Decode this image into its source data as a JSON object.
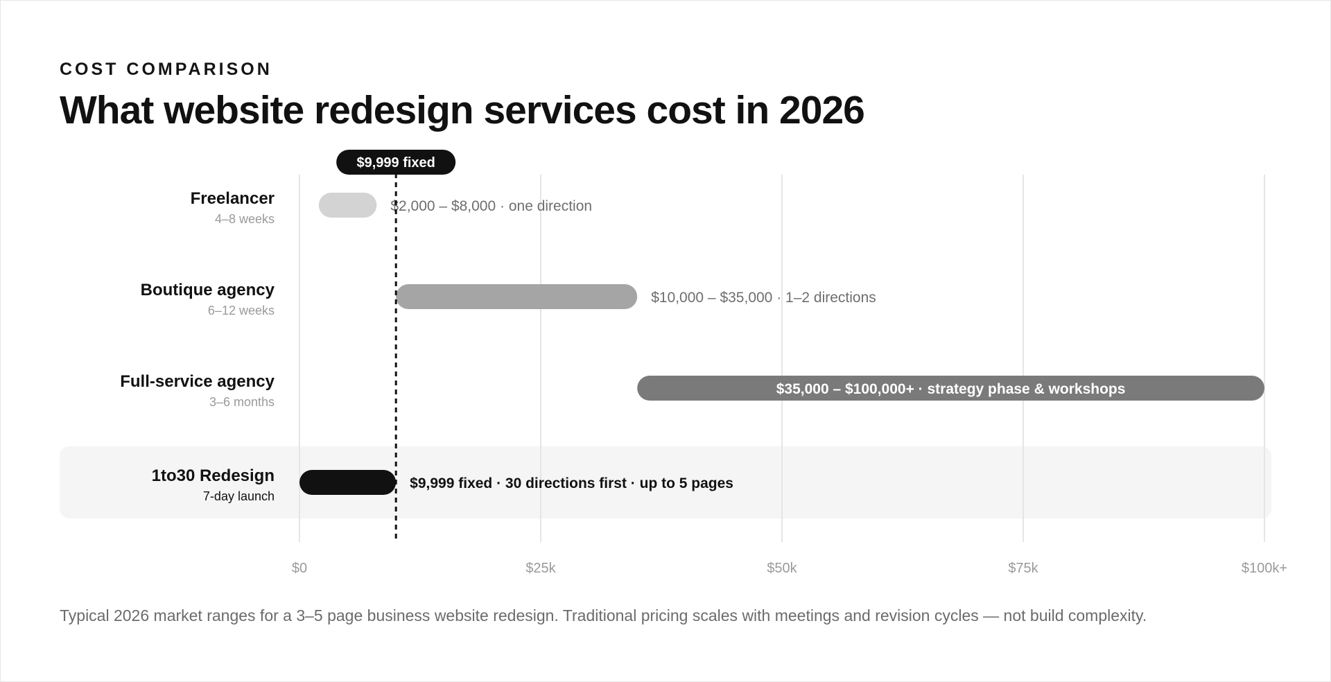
{
  "header": {
    "eyebrow": "COST COMPARISON",
    "title": "What website redesign services cost in 2026"
  },
  "footer": {
    "caption": "Typical 2026 market ranges for a 3–5 page business website redesign. Traditional pricing scales with meetings and revision cycles — not build complexity."
  },
  "colors": {
    "freelancer": "#d3d3d3",
    "boutique": "#a5a5a5",
    "full_service": "#7a7a7a",
    "oneto30": "#111111",
    "highlight_row_bg": "#f5f5f5",
    "grid": "#e5e5e5",
    "marker": "#111111"
  },
  "chart_data": {
    "type": "bar",
    "orientation": "horizontal-range",
    "title": "",
    "xlabel": "",
    "ylabel": "",
    "xlim": [
      0,
      100000
    ],
    "x_ticks": [
      {
        "value": 0,
        "label": "$0"
      },
      {
        "value": 25000,
        "label": "$25k"
      },
      {
        "value": 50000,
        "label": "$50k"
      },
      {
        "value": 75000,
        "label": "$75k"
      },
      {
        "value": 100000,
        "label": "$100k+"
      }
    ],
    "grid": true,
    "reference_line": {
      "value": 9999,
      "label": "$9,999 fixed"
    },
    "categories": [
      {
        "name": "Freelancer",
        "timeline": "4–8 weeks",
        "min": 2000,
        "max": 8000,
        "label": "$2,000 – $8,000 · one direction",
        "label_position": "outside",
        "color_key": "freelancer",
        "highlight": false
      },
      {
        "name": "Boutique agency",
        "timeline": "6–12 weeks",
        "min": 10000,
        "max": 35000,
        "label": "$10,000 – $35,000 · 1–2 directions",
        "label_position": "outside",
        "color_key": "boutique",
        "highlight": false
      },
      {
        "name": "Full-service agency",
        "timeline": "3–6 months",
        "min": 35000,
        "max": 100000,
        "label": "$35,000 – $100,000+ · strategy phase & workshops",
        "label_position": "inside",
        "color_key": "full_service",
        "highlight": false
      },
      {
        "name": "1to30 Redesign",
        "timeline": "7-day launch",
        "min": 0,
        "max": 9999,
        "label": "$9,999 fixed · 30 directions first · up to 5 pages",
        "label_position": "outside",
        "color_key": "oneto30",
        "highlight": true
      }
    ]
  }
}
